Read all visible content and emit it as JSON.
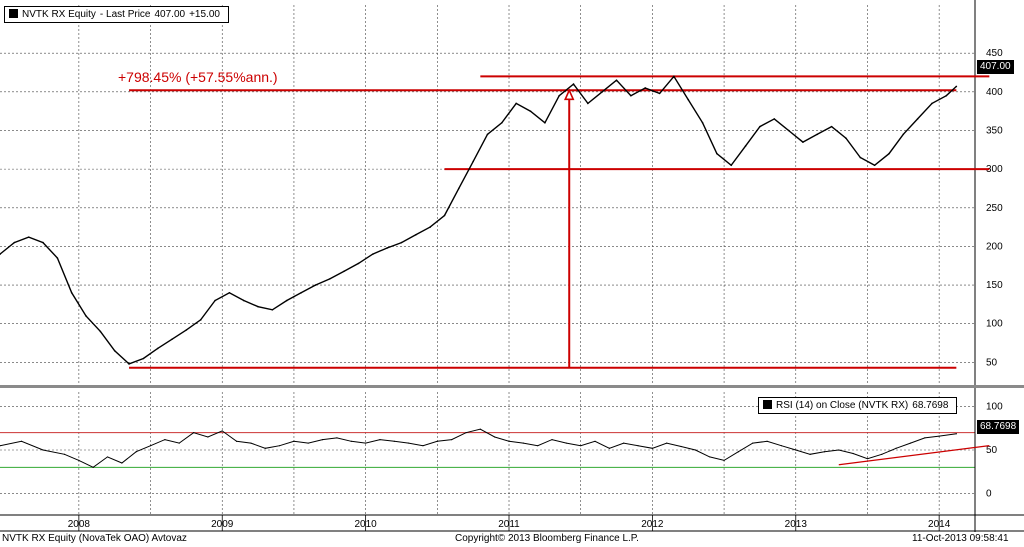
{
  "legend_top": {
    "ticker": "NVTK RX Equity",
    "label": "- Last Price",
    "last": "407.00",
    "change": "+15.00"
  },
  "legend_rsi": {
    "label": "RSI (14) on Close (NVTK RX)",
    "value": "68.7698"
  },
  "annotation": "+798.45% (+57.55%ann.)",
  "footer": {
    "left": "NVTK RX Equity (NovaTek OAO) Avtovaz",
    "center": "Copyright© 2013 Bloomberg Finance L.P.",
    "right": "11-Oct-2013 09:58:41"
  },
  "colors": {
    "price": "#000000",
    "annotation": "#cc0000",
    "rsi_upper": "#cc3333",
    "rsi_lower": "#33aa33",
    "grid": "#444444"
  },
  "chart_data": [
    {
      "type": "line",
      "name": "price",
      "title": "",
      "xlabel": "",
      "ylabel": "",
      "x_range": [
        2007.45,
        2014.25
      ],
      "ylim": [
        22,
        480
      ],
      "yticks": [
        50,
        100,
        150,
        200,
        250,
        300,
        350,
        400,
        450
      ],
      "xticks": [
        "2008",
        "2009",
        "2010",
        "2011",
        "2012",
        "2013",
        "2014"
      ],
      "grid": true,
      "series": [
        {
          "name": "NVTK RX Equity",
          "points": [
            [
              2007.45,
              190
            ],
            [
              2007.55,
              205
            ],
            [
              2007.65,
              212
            ],
            [
              2007.75,
              205
            ],
            [
              2007.85,
              185
            ],
            [
              2007.95,
              140
            ],
            [
              2008.05,
              110
            ],
            [
              2008.15,
              90
            ],
            [
              2008.25,
              65
            ],
            [
              2008.35,
              48
            ],
            [
              2008.45,
              55
            ],
            [
              2008.55,
              68
            ],
            [
              2008.65,
              80
            ],
            [
              2008.75,
              92
            ],
            [
              2008.85,
              105
            ],
            [
              2008.95,
              130
            ],
            [
              2009.05,
              140
            ],
            [
              2009.15,
              130
            ],
            [
              2009.25,
              122
            ],
            [
              2009.35,
              118
            ],
            [
              2009.45,
              130
            ],
            [
              2009.55,
              140
            ],
            [
              2009.65,
              150
            ],
            [
              2009.75,
              158
            ],
            [
              2009.85,
              168
            ],
            [
              2009.95,
              178
            ],
            [
              2010.05,
              190
            ],
            [
              2010.15,
              198
            ],
            [
              2010.25,
              205
            ],
            [
              2010.35,
              215
            ],
            [
              2010.45,
              225
            ],
            [
              2010.55,
              240
            ],
            [
              2010.65,
              275
            ],
            [
              2010.75,
              310
            ],
            [
              2010.85,
              345
            ],
            [
              2010.95,
              360
            ],
            [
              2011.05,
              385
            ],
            [
              2011.15,
              375
            ],
            [
              2011.25,
              360
            ],
            [
              2011.35,
              395
            ],
            [
              2011.45,
              410
            ],
            [
              2011.55,
              385
            ],
            [
              2011.65,
              400
            ],
            [
              2011.75,
              415
            ],
            [
              2011.85,
              395
            ],
            [
              2011.95,
              405
            ],
            [
              2012.05,
              398
            ],
            [
              2012.15,
              420
            ],
            [
              2012.25,
              390
            ],
            [
              2012.35,
              360
            ],
            [
              2012.45,
              320
            ],
            [
              2012.55,
              305
            ],
            [
              2012.65,
              330
            ],
            [
              2012.75,
              355
            ],
            [
              2012.85,
              365
            ],
            [
              2012.95,
              350
            ],
            [
              2013.05,
              335
            ],
            [
              2013.15,
              345
            ],
            [
              2013.25,
              355
            ],
            [
              2013.35,
              340
            ],
            [
              2013.45,
              315
            ],
            [
              2013.55,
              305
            ],
            [
              2013.65,
              320
            ],
            [
              2013.75,
              345
            ],
            [
              2013.85,
              365
            ],
            [
              2013.95,
              385
            ],
            [
              2014.05,
              395
            ],
            [
              2014.12,
              407
            ]
          ]
        }
      ],
      "reference_lines": [
        {
          "y": 43,
          "x": [
            2008.35,
            2014.12
          ]
        },
        {
          "y": 300,
          "x": [
            2010.55,
            2014.35
          ]
        },
        {
          "y": 402,
          "x": [
            2008.35,
            2014.12
          ]
        },
        {
          "y": 420,
          "x": [
            2010.8,
            2014.35
          ]
        }
      ],
      "arrow": {
        "x": 2011.42,
        "y_from": 43,
        "y_to": 402
      },
      "last_price": "407.00"
    },
    {
      "type": "line",
      "name": "rsi",
      "title": "",
      "xlabel": "",
      "ylabel": "",
      "x_range": [
        2007.45,
        2014.25
      ],
      "ylim": [
        -10,
        110
      ],
      "yticks": [
        0,
        50,
        100
      ],
      "grid": true,
      "thresholds": [
        70,
        30
      ],
      "series": [
        {
          "name": "RSI (14) on Close (NVTK RX)",
          "points": [
            [
              2007.45,
              55
            ],
            [
              2007.6,
              60
            ],
            [
              2007.75,
              50
            ],
            [
              2007.9,
              45
            ],
            [
              2008.0,
              38
            ],
            [
              2008.1,
              30
            ],
            [
              2008.2,
              42
            ],
            [
              2008.3,
              35
            ],
            [
              2008.4,
              48
            ],
            [
              2008.5,
              55
            ],
            [
              2008.6,
              62
            ],
            [
              2008.7,
              58
            ],
            [
              2008.8,
              70
            ],
            [
              2008.9,
              65
            ],
            [
              2009.0,
              72
            ],
            [
              2009.1,
              60
            ],
            [
              2009.2,
              58
            ],
            [
              2009.3,
              52
            ],
            [
              2009.4,
              55
            ],
            [
              2009.5,
              60
            ],
            [
              2009.6,
              58
            ],
            [
              2009.7,
              62
            ],
            [
              2009.8,
              64
            ],
            [
              2009.9,
              60
            ],
            [
              2010.0,
              58
            ],
            [
              2010.1,
              62
            ],
            [
              2010.2,
              60
            ],
            [
              2010.3,
              58
            ],
            [
              2010.4,
              55
            ],
            [
              2010.5,
              60
            ],
            [
              2010.6,
              62
            ],
            [
              2010.7,
              70
            ],
            [
              2010.8,
              74
            ],
            [
              2010.9,
              65
            ],
            [
              2011.0,
              60
            ],
            [
              2011.1,
              58
            ],
            [
              2011.2,
              55
            ],
            [
              2011.3,
              62
            ],
            [
              2011.4,
              58
            ],
            [
              2011.5,
              55
            ],
            [
              2011.6,
              60
            ],
            [
              2011.7,
              52
            ],
            [
              2011.8,
              58
            ],
            [
              2011.9,
              55
            ],
            [
              2012.0,
              52
            ],
            [
              2012.1,
              58
            ],
            [
              2012.2,
              54
            ],
            [
              2012.3,
              50
            ],
            [
              2012.4,
              42
            ],
            [
              2012.5,
              38
            ],
            [
              2012.6,
              48
            ],
            [
              2012.7,
              58
            ],
            [
              2012.8,
              60
            ],
            [
              2012.9,
              55
            ],
            [
              2013.0,
              50
            ],
            [
              2013.1,
              45
            ],
            [
              2013.2,
              48
            ],
            [
              2013.3,
              50
            ],
            [
              2013.4,
              46
            ],
            [
              2013.5,
              40
            ],
            [
              2013.6,
              45
            ],
            [
              2013.7,
              52
            ],
            [
              2013.8,
              58
            ],
            [
              2013.9,
              64
            ],
            [
              2014.0,
              66
            ],
            [
              2014.12,
              68.77
            ]
          ]
        }
      ],
      "trendline": [
        [
          2013.3,
          33
        ],
        [
          2014.35,
          55
        ]
      ],
      "last_value": "68.7698"
    }
  ]
}
